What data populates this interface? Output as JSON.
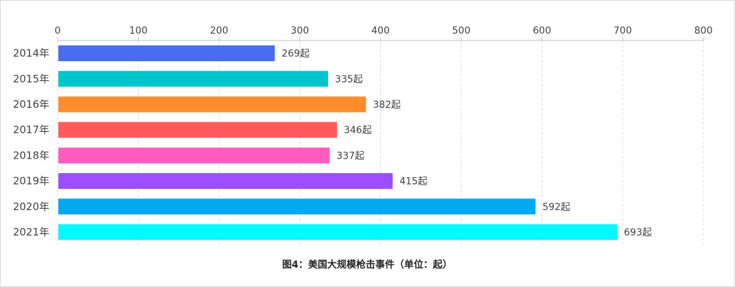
{
  "chart_data": {
    "type": "bar",
    "orientation": "horizontal",
    "title": "图4：美国大规模枪击事件（单位：起）",
    "categories": [
      "2014年",
      "2015年",
      "2016年",
      "2017年",
      "2018年",
      "2019年",
      "2020年",
      "2021年"
    ],
    "values": [
      269,
      335,
      382,
      346,
      337,
      415,
      592,
      693
    ],
    "data_labels": [
      "269起",
      "335起",
      "382起",
      "346起",
      "337起",
      "415起",
      "592起",
      "693起"
    ],
    "colors": [
      "#4a6cf0",
      "#00c5cd",
      "#ff8c2a",
      "#ff5a5a",
      "#ff5cc0",
      "#9b4dff",
      "#00a9f0",
      "#00faff"
    ],
    "xlim": [
      0,
      800
    ],
    "xticks": [
      0,
      100,
      200,
      300,
      400,
      500,
      600,
      700,
      800
    ],
    "xaxis_position": "top",
    "grid": true,
    "legend": "none"
  }
}
